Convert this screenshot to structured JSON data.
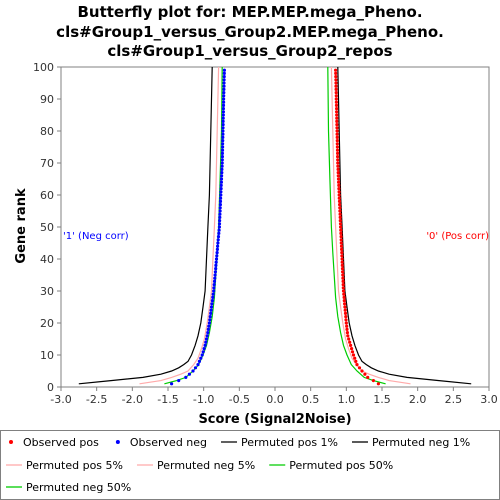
{
  "chart_data": {
    "type": "line",
    "title": [
      "Butterfly plot for: MEP.MEP.mega_Pheno.",
      "cls#Group1_versus_Group2.MEP.mega_Pheno.",
      "cls#Group1_versus_Group2_repos"
    ],
    "xlabel": "Score (Signal2Noise)",
    "ylabel": "Gene rank",
    "xlim": [
      -3.0,
      3.0
    ],
    "ylim": [
      0,
      100
    ],
    "x_ticks": [
      "-3.0",
      "-2.5",
      "-2.0",
      "-1.5",
      "-1.0",
      "-0.5",
      "0.0",
      "0.5",
      "1.0",
      "1.5",
      "2.0",
      "2.5",
      "3.0"
    ],
    "y_ticks": [
      "0",
      "10",
      "20",
      "30",
      "40",
      "50",
      "60",
      "70",
      "80",
      "90",
      "100"
    ],
    "grid": false,
    "annotations": {
      "neg": {
        "text": "'1' (Neg corr)",
        "color": "#0000ff"
      },
      "pos": {
        "text": "'0' (Pos corr)",
        "color": "#ff0000"
      }
    },
    "series": [
      {
        "name": "Observed pos",
        "style": "dots",
        "color": "#ff0000",
        "x": [
          1.45,
          1.38,
          1.3,
          1.22,
          1.15,
          1.1,
          1.06,
          1.02,
          1.0,
          0.98,
          0.96,
          0.95,
          0.94,
          0.93,
          0.92,
          0.91,
          0.9,
          0.89,
          0.88,
          0.87,
          0.86,
          0.85
        ],
        "y": [
          1,
          2,
          3,
          5,
          7,
          10,
          13,
          16,
          20,
          25,
          30,
          35,
          40,
          45,
          50,
          55,
          60,
          65,
          70,
          80,
          90,
          99
        ]
      },
      {
        "name": "Observed neg",
        "style": "dots",
        "color": "#0000ff",
        "x": [
          -1.45,
          -1.35,
          -1.25,
          -1.15,
          -1.08,
          -1.02,
          -0.98,
          -0.95,
          -0.92,
          -0.89,
          -0.86,
          -0.84,
          -0.82,
          -0.8,
          -0.78,
          -0.77,
          -0.76,
          -0.75,
          -0.74,
          -0.73,
          -0.72,
          -0.71
        ],
        "y": [
          1,
          2,
          3,
          5,
          7,
          10,
          13,
          16,
          20,
          25,
          30,
          35,
          40,
          45,
          50,
          55,
          60,
          65,
          70,
          80,
          90,
          99
        ]
      },
      {
        "name": "Permuted pos 1%",
        "style": "line",
        "color": "#000000",
        "x": [
          2.75,
          2.3,
          1.85,
          1.6,
          1.45,
          1.35,
          1.28,
          1.22,
          1.17,
          1.12,
          1.08,
          1.04,
          1.01,
          0.98,
          0.96,
          0.94,
          0.92,
          0.9,
          0.88
        ],
        "y": [
          1,
          2,
          3,
          4,
          5,
          6,
          7,
          8,
          10,
          13,
          16,
          20,
          25,
          30,
          40,
          50,
          60,
          80,
          100
        ]
      },
      {
        "name": "Permuted neg 1%",
        "style": "line",
        "color": "#000000",
        "x": [
          -2.75,
          -2.3,
          -1.85,
          -1.6,
          -1.45,
          -1.35,
          -1.28,
          -1.22,
          -1.17,
          -1.12,
          -1.08,
          -1.04,
          -1.01,
          -0.98,
          -0.96,
          -0.94,
          -0.92,
          -0.9,
          -0.88
        ],
        "y": [
          1,
          2,
          3,
          4,
          5,
          6,
          7,
          8,
          10,
          13,
          16,
          20,
          25,
          30,
          40,
          50,
          60,
          80,
          100
        ]
      },
      {
        "name": "Permuted pos 5%",
        "style": "line",
        "color": "#ffaaaa",
        "x": [
          1.9,
          1.6,
          1.45,
          1.32,
          1.22,
          1.14,
          1.08,
          1.03,
          0.99,
          0.95,
          0.92,
          0.89,
          0.87,
          0.85,
          0.83,
          0.81,
          0.79
        ],
        "y": [
          1,
          2,
          3,
          4,
          5,
          7,
          9,
          12,
          15,
          20,
          25,
          30,
          40,
          50,
          60,
          80,
          100
        ]
      },
      {
        "name": "Permuted neg 5%",
        "style": "line",
        "color": "#ffaaaa",
        "x": [
          -1.9,
          -1.6,
          -1.45,
          -1.32,
          -1.22,
          -1.14,
          -1.08,
          -1.03,
          -0.99,
          -0.95,
          -0.92,
          -0.89,
          -0.87,
          -0.85,
          -0.83,
          -0.81,
          -0.79
        ],
        "y": [
          1,
          2,
          3,
          4,
          5,
          7,
          9,
          12,
          15,
          20,
          25,
          30,
          40,
          50,
          60,
          80,
          100
        ]
      },
      {
        "name": "Permuted pos 50%",
        "style": "line",
        "color": "#00cc00",
        "x": [
          1.55,
          1.38,
          1.25,
          1.15,
          1.07,
          1.01,
          0.96,
          0.92,
          0.88,
          0.85,
          0.83,
          0.81,
          0.79,
          0.77,
          0.75,
          0.74
        ],
        "y": [
          1,
          2,
          3,
          5,
          7,
          10,
          13,
          17,
          22,
          28,
          35,
          42,
          50,
          65,
          80,
          100
        ]
      },
      {
        "name": "Permuted neg 50%",
        "style": "line",
        "color": "#00cc00",
        "x": [
          -1.55,
          -1.38,
          -1.25,
          -1.15,
          -1.07,
          -1.01,
          -0.96,
          -0.92,
          -0.88,
          -0.85,
          -0.83,
          -0.81,
          -0.79,
          -0.77,
          -0.75,
          -0.74
        ],
        "y": [
          1,
          2,
          3,
          5,
          7,
          10,
          13,
          17,
          22,
          28,
          35,
          42,
          50,
          65,
          80,
          100
        ]
      }
    ],
    "legend": [
      {
        "label": "Observed pos",
        "kind": "dot",
        "color": "#ff0000"
      },
      {
        "label": "Observed neg",
        "kind": "dot",
        "color": "#0000ff"
      },
      {
        "label": "Permuted pos 1%",
        "kind": "line",
        "color": "#000000"
      },
      {
        "label": "Permuted neg 1%",
        "kind": "line",
        "color": "#000000"
      },
      {
        "label": "Permuted pos 5%",
        "kind": "line",
        "color": "#ffaaaa"
      },
      {
        "label": "Permuted neg 5%",
        "kind": "line",
        "color": "#ffaaaa"
      },
      {
        "label": "Permuted pos 50%",
        "kind": "line",
        "color": "#00cc00"
      },
      {
        "label": "Permuted neg 50%",
        "kind": "line",
        "color": "#00cc00"
      }
    ]
  }
}
